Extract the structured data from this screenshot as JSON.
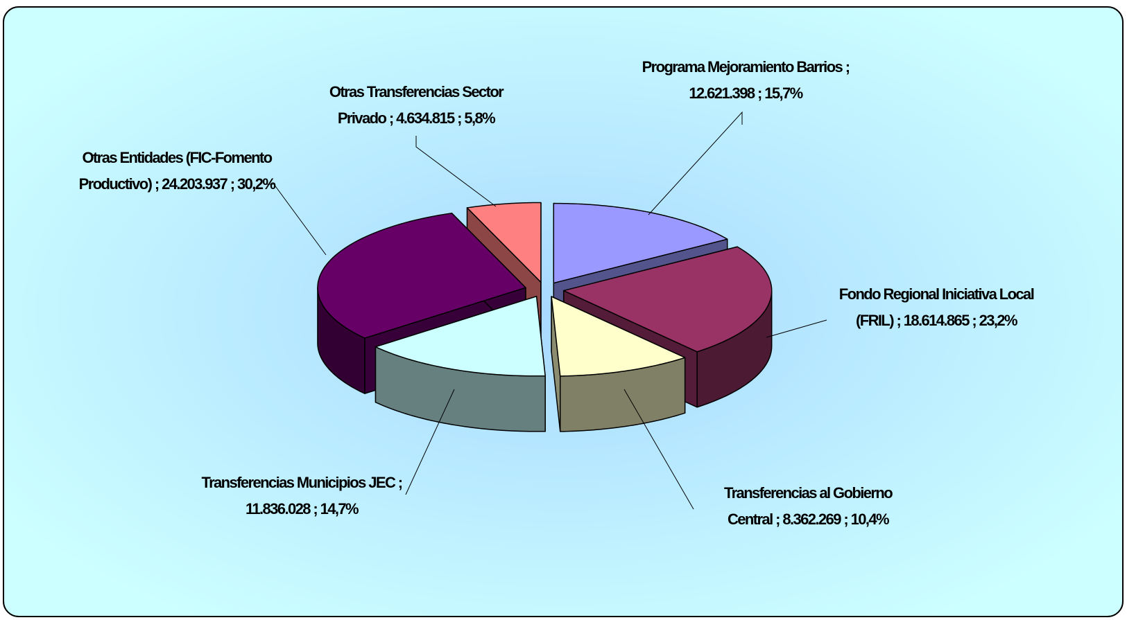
{
  "chart_data": {
    "type": "pie",
    "categories": [
      "Programa Mejoramiento Barrios",
      "Fondo Regional Iniciativa Local (FRIL)",
      "Transferencias al Gobierno Central",
      "Transferencias Municipios JEC",
      "Otras Entidades (FIC-Fomento Productivo)",
      "Otras Transferencias Sector Privado"
    ],
    "values": [
      12621398,
      18614865,
      8362269,
      11836028,
      24203937,
      4634815
    ],
    "value_labels": [
      "12.621.398",
      "18.614.865",
      "8.362.269",
      "11.836.028",
      "24.203.937",
      "4.634.815"
    ],
    "percent_labels": [
      "15,7%",
      "23,2%",
      "10,4%",
      "14,7%",
      "30,2%",
      "5,8%"
    ],
    "separator": ";",
    "colors": [
      "#9999ff",
      "#993366",
      "#ffffcc",
      "#ccffff",
      "#660066",
      "#ff8080"
    ]
  }
}
